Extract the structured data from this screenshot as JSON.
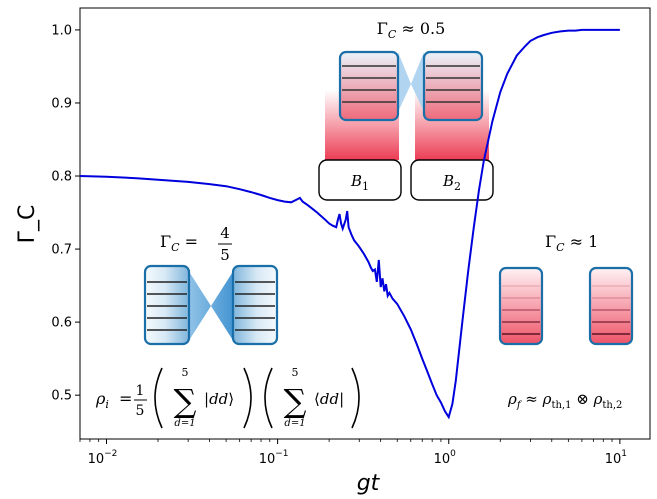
{
  "chart_data": {
    "type": "line",
    "xscale": "log",
    "xlabel": "gt",
    "ylabel": "Γ_C",
    "xlim": [
      0.007,
      15
    ],
    "ylim": [
      0.44,
      1.03
    ],
    "grid": false,
    "xtick_labels": [
      "10^-2",
      "10^-1",
      "10^0",
      "10^1"
    ],
    "ytick_labels": [
      "0.5",
      "0.6",
      "0.7",
      "0.8",
      "0.9",
      "1.0"
    ],
    "series": [
      {
        "color": "#0000dd",
        "x": [
          0.007,
          0.01,
          0.015,
          0.02,
          0.03,
          0.04,
          0.05,
          0.06,
          0.07,
          0.08,
          0.09,
          0.1,
          0.11,
          0.12,
          0.13,
          0.135,
          0.14,
          0.15,
          0.16,
          0.17,
          0.18,
          0.19,
          0.2,
          0.21,
          0.22,
          0.225,
          0.23,
          0.235,
          0.24,
          0.25,
          0.255,
          0.26,
          0.27,
          0.28,
          0.3,
          0.32,
          0.34,
          0.35,
          0.36,
          0.37,
          0.38,
          0.39,
          0.4,
          0.41,
          0.42,
          0.43,
          0.44,
          0.45,
          0.47,
          0.5,
          0.55,
          0.6,
          0.65,
          0.7,
          0.75,
          0.8,
          0.85,
          0.9,
          0.95,
          1.0,
          1.05,
          1.1,
          1.2,
          1.3,
          1.4,
          1.5,
          1.6,
          1.8,
          2.0,
          2.2,
          2.5,
          2.8,
          3.0,
          3.3,
          3.6,
          4.0,
          4.5,
          5.0,
          5.5,
          6.0,
          7.0,
          8.0,
          10.0
        ],
        "y": [
          0.8,
          0.799,
          0.797,
          0.795,
          0.792,
          0.789,
          0.786,
          0.782,
          0.778,
          0.774,
          0.77,
          0.767,
          0.765,
          0.764,
          0.768,
          0.77,
          0.765,
          0.76,
          0.755,
          0.75,
          0.745,
          0.74,
          0.735,
          0.732,
          0.73,
          0.74,
          0.748,
          0.735,
          0.728,
          0.74,
          0.752,
          0.73,
          0.72,
          0.712,
          0.703,
          0.693,
          0.682,
          0.675,
          0.67,
          0.672,
          0.655,
          0.685,
          0.648,
          0.66,
          0.642,
          0.652,
          0.636,
          0.64,
          0.632,
          0.625,
          0.608,
          0.59,
          0.57,
          0.55,
          0.532,
          0.515,
          0.5,
          0.49,
          0.478,
          0.47,
          0.488,
          0.52,
          0.6,
          0.67,
          0.73,
          0.78,
          0.82,
          0.875,
          0.915,
          0.94,
          0.965,
          0.978,
          0.985,
          0.99,
          0.993,
          0.996,
          0.998,
          0.999,
          0.999,
          1.0,
          1.0,
          1.0,
          1.0
        ]
      }
    ],
    "annotations": {
      "top_state": "Γ_C ≈ 0.5",
      "left_state": "Γ_C = 4/5",
      "right_state": "Γ_C ≈ 1",
      "bath1": "B_1",
      "bath2": "B_2",
      "rho_i": "ρ_i = 1/5 ( Σ_{d=1}^{5} |dd⟩ ) ( Σ_{d=1}^{5} ⟨dd| )",
      "rho_f": "ρ_f ≈ ρ_th,1 ⊗ ρ_th,2"
    }
  }
}
